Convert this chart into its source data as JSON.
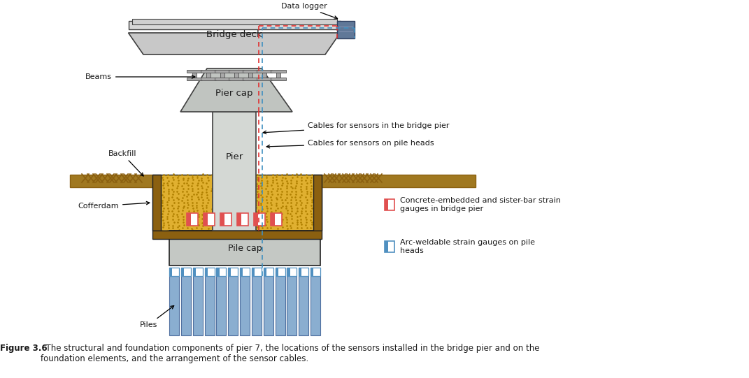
{
  "figure_label": "Figure 3.6",
  "figure_caption": "  The structural and foundation components of pier 7, the locations of the sensors installed in the bridge pier and on the\nfoundation elements, and the arrangement of the sensor cables.",
  "labels": {
    "data_logger": "Data logger",
    "bridge_deck": "Bridge deck",
    "beams": "Beams",
    "pier_cap": "Pier cap",
    "pier": "Pier",
    "backfill": "Backfill",
    "cofferdam": "Cofferdam",
    "pile_cap": "Pile cap",
    "piles": "Piles",
    "cables_pier": "Cables for sensors in the bridge pier",
    "cables_pile": "Cables for sensors on pile heads",
    "concrete_gauges": "Concrete-embedded and sister-bar strain\ngauges in bridge pier",
    "arc_gauges": "Arc-weldable strain gauges on pile\nheads"
  },
  "colors": {
    "background": "#ffffff",
    "bridge_deck_fill": "#c8c8c8",
    "bridge_deck_bottom": "#b0b8b0",
    "pier_cap_fill": "#c0c4c0",
    "pier_fill": "#d4d8d4",
    "pile_cap_fill": "#c4c8c4",
    "piles_fill": "#8aaed0",
    "piles_edge": "#5070a0",
    "soil_fill": "#e0b030",
    "soil_dots": "#b08000",
    "backfill_surface": "#8B6010",
    "backfill_fill": "#a07820",
    "cofferdam_fill": "#8B6010",
    "cable_red": "#e03030",
    "cable_blue": "#4090c0",
    "strain_red": "#e05050",
    "strain_blue": "#5090c0",
    "outline": "#404040",
    "dark_outline": "#202020",
    "text_color": "#1a1a1a",
    "data_logger": "#607898",
    "caption_color": "#1a1a1a"
  }
}
